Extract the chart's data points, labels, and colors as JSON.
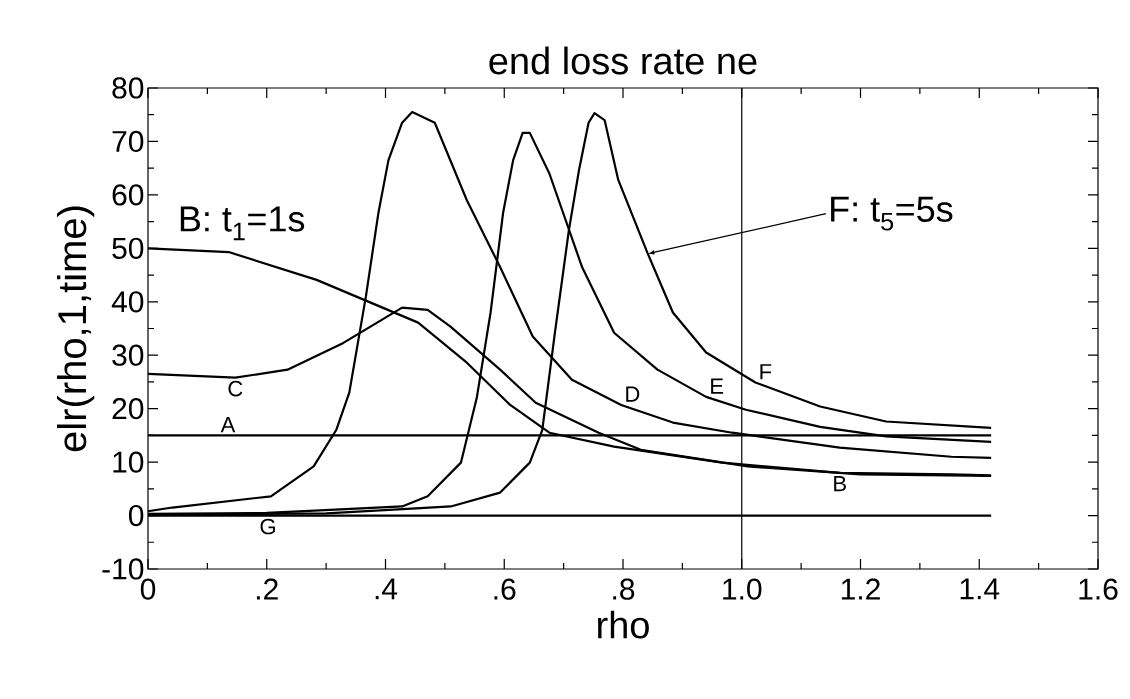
{
  "chart_data": {
    "type": "line",
    "title": "end loss rate ne",
    "xlabel": "rho",
    "ylabel": "elr(rho,1,time)",
    "xlim": [
      0,
      1.6
    ],
    "ylim": [
      -10,
      80
    ],
    "xticks": [
      0,
      {
        "value": 0.2,
        "label": ".2"
      },
      {
        "value": 0.4,
        "label": ".4"
      },
      {
        "value": 0.6,
        "label": ".6"
      },
      {
        "value": 0.8,
        "label": ".8"
      },
      {
        "value": 1.0,
        "label": "1.0"
      },
      {
        "value": 1.2,
        "label": "1.2"
      },
      {
        "value": 1.4,
        "label": "1.4"
      },
      {
        "value": 1.6,
        "label": "1.6"
      }
    ],
    "yticks": [
      -10,
      0,
      10,
      20,
      30,
      40,
      50,
      60,
      70,
      80
    ],
    "grid": false,
    "marker": "none",
    "line_style": "solid",
    "series": [
      {
        "name": "A",
        "color": "#000000",
        "x": [
          0,
          1.42
        ],
        "values": [
          15,
          15
        ]
      },
      {
        "name": "B",
        "color": "#000000",
        "x": [
          0,
          0.136,
          0.284,
          0.455,
          0.537,
          0.61,
          0.676,
          0.785,
          0.967,
          1.165,
          1.353,
          1.42
        ],
        "values": [
          50,
          49.3,
          44.1,
          36.1,
          28.6,
          20.7,
          15.5,
          12.9,
          9.9,
          8.0,
          7.7,
          7.5
        ]
      },
      {
        "name": "C",
        "color": "#000000",
        "x": [
          0,
          0.147,
          0.235,
          0.329,
          0.428,
          0.471,
          0.51,
          0.593,
          0.653,
          0.759,
          0.83,
          1.01,
          1.2,
          1.42
        ],
        "values": [
          26.5,
          25.8,
          27.3,
          32.3,
          38.9,
          38.5,
          35.3,
          27.3,
          21.1,
          15.5,
          12.3,
          9.2,
          7.7,
          7.4
        ]
      },
      {
        "name": "D",
        "color": "#000000",
        "x": [
          0,
          0.041,
          0.207,
          0.279,
          0.317,
          0.339,
          0.367,
          0.388,
          0.405,
          0.428,
          0.445,
          0.483,
          0.537,
          0.593,
          0.648,
          0.714,
          0.797,
          0.884,
          0.984,
          1.165,
          1.353,
          1.42
        ],
        "values": [
          0.8,
          1.5,
          3.6,
          9.2,
          16,
          23,
          41,
          56.6,
          66.5,
          73.5,
          75.5,
          73.5,
          59,
          46.5,
          33.5,
          25.4,
          20.7,
          17.4,
          15.5,
          12.7,
          11,
          10.8
        ]
      },
      {
        "name": "E",
        "color": "#000000",
        "x": [
          0,
          0.2,
          0.428,
          0.471,
          0.527,
          0.554,
          0.577,
          0.598,
          0.615,
          0.631,
          0.643,
          0.676,
          0.731,
          0.785,
          0.858,
          0.94,
          1.007,
          1.132,
          1.243,
          1.42
        ],
        "values": [
          0.3,
          0.5,
          1.7,
          3.6,
          9.9,
          22.2,
          38,
          56.6,
          66.5,
          71.6,
          71.6,
          64,
          46.5,
          34.2,
          27.3,
          22.2,
          19.8,
          16.6,
          14.8,
          13.8
        ]
      },
      {
        "name": "F",
        "color": "#000000",
        "x": [
          0,
          0.3,
          0.51,
          0.593,
          0.643,
          0.664,
          0.686,
          0.709,
          0.726,
          0.742,
          0.752,
          0.769,
          0.792,
          0.841,
          0.884,
          0.94,
          1.023,
          1.132,
          1.243,
          1.42
        ],
        "values": [
          0.2,
          0.4,
          1.7,
          4.3,
          9.9,
          16,
          34.8,
          53.5,
          64.7,
          73.5,
          75.3,
          74,
          62.8,
          49.2,
          38,
          30.5,
          24.9,
          20.4,
          17.6,
          16.4
        ]
      },
      {
        "name": "G",
        "color": "#000000",
        "x": [
          0,
          1.42
        ],
        "values": [
          0,
          0
        ]
      }
    ],
    "ref_lines": [
      {
        "axis": "x",
        "value": 1.0,
        "color": "#000000"
      }
    ],
    "annotations": [
      {
        "text": "B: t$_{1}$=1s",
        "x": 0.05,
        "y": 50
      },
      {
        "text": "F: t$_{5}$=5s",
        "x": 0.842,
        "y": 49
      }
    ]
  }
}
